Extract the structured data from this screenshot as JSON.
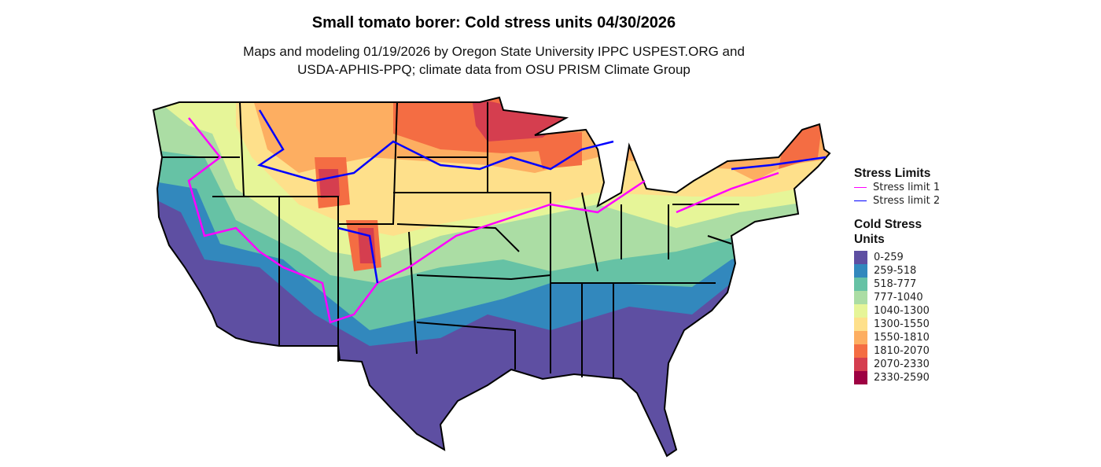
{
  "title": "Small tomato borer: Cold stress units 04/30/2026",
  "subtitle_line1": "Maps and modeling 01/19/2026 by Oregon State University IPPC USPEST.ORG and",
  "subtitle_line2": "USDA-APHIS-PPQ; climate data from OSU PRISM Climate Group",
  "legend": {
    "stress_title": "Stress Limits",
    "stress": [
      {
        "label": "Stress limit 1",
        "color": "#ff00ff"
      },
      {
        "label": "Stress limit 2",
        "color": "#0000ff"
      }
    ],
    "units_title_1": "Cold Stress",
    "units_title_2": "Units",
    "bins": [
      {
        "label": "0-259",
        "color": "#5E4FA2"
      },
      {
        "label": "259-518",
        "color": "#3288BD"
      },
      {
        "label": "518-777",
        "color": "#66C2A5"
      },
      {
        "label": "777-1040",
        "color": "#ABDDA4"
      },
      {
        "label": "1040-1300",
        "color": "#E6F598"
      },
      {
        "label": "1300-1550",
        "color": "#FEE08B"
      },
      {
        "label": "1550-1810",
        "color": "#FDAE61"
      },
      {
        "label": "1810-2070",
        "color": "#F46D43"
      },
      {
        "label": "2070-2330",
        "color": "#D53E4F"
      },
      {
        "label": "2330-2590",
        "color": "#9E0142"
      }
    ]
  }
}
